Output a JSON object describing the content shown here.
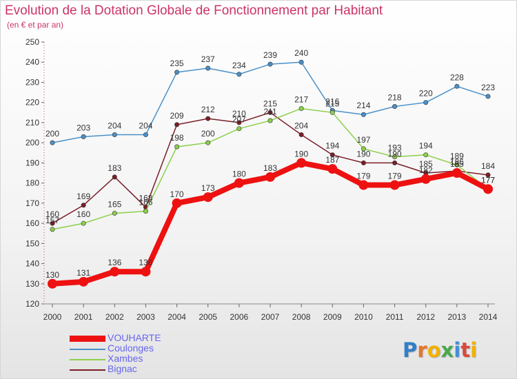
{
  "header": {
    "title": "Evolution de la Dotation Globale de Fonctionnement par Habitant",
    "subtitle": "(en € et par an)"
  },
  "logo": {
    "text": "Proxiti",
    "letters": [
      "P",
      "r",
      "o",
      "x",
      "i",
      "t",
      "i"
    ],
    "colors": [
      "#2f7fc9",
      "#e8742a",
      "#f2b100",
      "#4aa84f",
      "#3f8fd8",
      "#d94a3a",
      "#f2b100"
    ]
  },
  "colors": {
    "title": "#cc3366",
    "legend_text": "#6666ee",
    "axis": "#666666"
  },
  "chart_data": {
    "type": "line",
    "x": [
      "2000",
      "2001",
      "2002",
      "2003",
      "2004",
      "2005",
      "2006",
      "2007",
      "2008",
      "2009",
      "2010",
      "2011",
      "2012",
      "2013",
      "2014"
    ],
    "ylim": [
      120,
      250
    ],
    "ytick_step": 10,
    "grid": false,
    "legend_position": "bottom-left",
    "series": [
      {
        "name": "Coulonges",
        "color": "#4a90c8",
        "values": [
          200,
          203,
          204,
          204,
          235,
          237,
          234,
          239,
          240,
          216,
          214,
          218,
          220,
          228,
          223
        ],
        "labels": [
          "200",
          "203",
          "204",
          "204",
          "235",
          "237",
          "234",
          "239",
          "240",
          "216",
          "214",
          "218",
          "220",
          "228",
          "223"
        ]
      },
      {
        "name": "Bignac",
        "color": "#7a1e28",
        "values": [
          160,
          169,
          183,
          168,
          209,
          212,
          210,
          215,
          204,
          194,
          190,
          190,
          185,
          186,
          184
        ],
        "labels": [
          "160",
          "169",
          "183",
          "168",
          "209",
          "212",
          "210",
          "215",
          "204",
          "194",
          "190",
          "190",
          "185",
          "186",
          "184"
        ]
      },
      {
        "name": "Xambes",
        "color": "#8ccf4a",
        "values": [
          157,
          160,
          165,
          166,
          198,
          200,
          207,
          211,
          217,
          215,
          197,
          193,
          194,
          189,
          177
        ],
        "labels": [
          "157",
          "160",
          "165",
          "166",
          "198",
          "200",
          "207",
          "211",
          "217",
          "215",
          "197",
          "193",
          "194",
          "189",
          "177"
        ]
      },
      {
        "name": "VOUHARTE",
        "color": "#ee1111",
        "values": [
          130,
          131,
          136,
          136,
          170,
          173,
          180,
          183,
          190,
          187,
          179,
          179,
          182,
          185,
          177
        ],
        "labels": [
          "130",
          "131",
          "136",
          "136",
          "170",
          "173",
          "180",
          "183",
          "190",
          "187",
          "179",
          "179",
          "182",
          "185",
          "177"
        ]
      }
    ],
    "legend_order": [
      "VOUHARTE",
      "Coulonges",
      "Xambes",
      "Bignac"
    ]
  }
}
